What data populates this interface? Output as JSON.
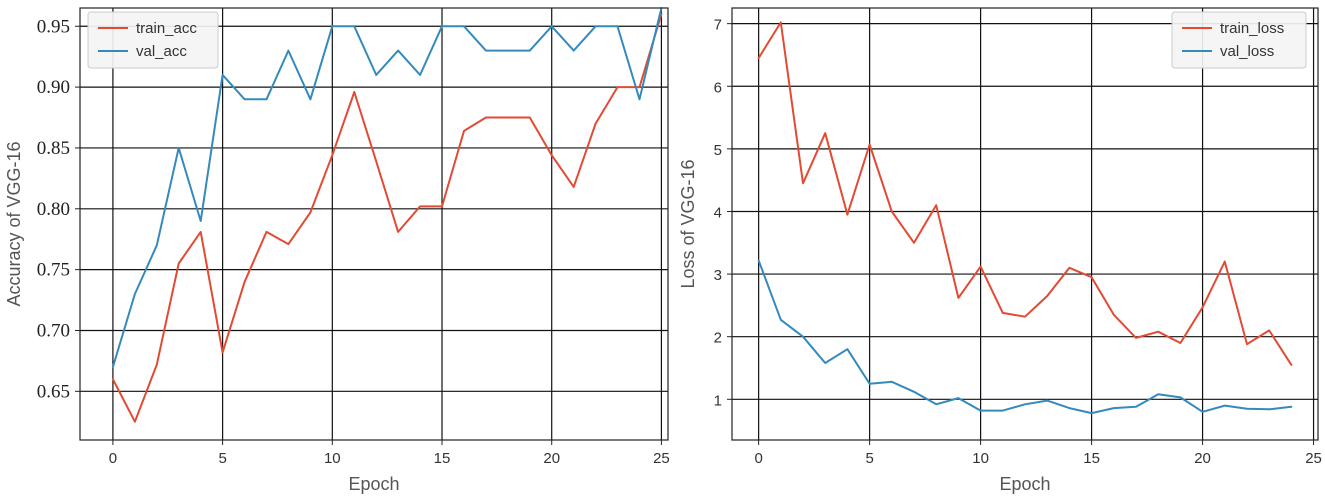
{
  "chart_data": [
    {
      "type": "line",
      "xlabel": "Epoch",
      "ylabel": "Accuracy of VGG-16",
      "xlim": [
        -1.5,
        25.3
      ],
      "ylim": [
        0.61,
        0.965
      ],
      "xticks": [
        0,
        5,
        10,
        15,
        20,
        25
      ],
      "yticks": [
        0.65,
        0.7,
        0.75,
        0.8,
        0.85,
        0.9,
        0.95
      ],
      "ytick_labels": [
        "0.65",
        "0.70",
        "0.75",
        "0.80",
        "0.85",
        "0.90",
        "0.95"
      ],
      "grid": true,
      "legend_position": "top-left",
      "series": [
        {
          "name": "train_acc",
          "color": "#e24a33",
          "x": [
            0,
            1,
            2,
            3,
            4,
            5,
            6,
            7,
            8,
            9,
            10,
            11,
            12,
            13,
            14,
            15,
            16,
            17,
            18,
            19,
            20,
            21,
            22,
            23,
            24,
            25
          ],
          "values": [
            0.66,
            0.625,
            0.672,
            0.755,
            0.781,
            0.682,
            0.74,
            0.781,
            0.771,
            0.797,
            0.844,
            0.896,
            0.839,
            0.781,
            0.802,
            0.802,
            0.864,
            0.875,
            0.875,
            0.875,
            0.844,
            0.818,
            0.87,
            0.9,
            0.9,
            0.96
          ]
        },
        {
          "name": "val_acc",
          "color": "#348abd",
          "x": [
            0,
            1,
            2,
            3,
            4,
            5,
            6,
            7,
            8,
            9,
            10,
            11,
            12,
            13,
            14,
            15,
            16,
            17,
            18,
            19,
            20,
            21,
            22,
            23,
            24,
            25
          ],
          "values": [
            0.67,
            0.73,
            0.77,
            0.85,
            0.79,
            0.91,
            0.89,
            0.89,
            0.93,
            0.89,
            0.95,
            0.95,
            0.91,
            0.93,
            0.91,
            0.95,
            0.95,
            0.93,
            0.93,
            0.93,
            0.95,
            0.93,
            0.95,
            0.95,
            0.89,
            0.965
          ]
        }
      ]
    },
    {
      "type": "line",
      "xlabel": "Epoch",
      "ylabel": "Loss of VGG-16",
      "xlim": [
        -1.2,
        25.2
      ],
      "ylim": [
        0.35,
        7.25
      ],
      "xticks": [
        0,
        5,
        10,
        15,
        20,
        25
      ],
      "yticks": [
        1,
        2,
        3,
        4,
        5,
        6,
        7
      ],
      "ytick_labels": [
        "1",
        "2",
        "3",
        "4",
        "5",
        "6",
        "7"
      ],
      "grid": true,
      "legend_position": "top-right",
      "series": [
        {
          "name": "train_loss",
          "color": "#e24a33",
          "x": [
            0,
            1,
            2,
            3,
            4,
            5,
            6,
            7,
            8,
            9,
            10,
            11,
            12,
            13,
            14,
            15,
            16,
            17,
            18,
            19,
            20,
            21,
            22,
            23,
            24
          ],
          "values": [
            6.45,
            7.02,
            4.45,
            5.25,
            3.95,
            5.07,
            4.0,
            3.5,
            4.1,
            2.62,
            3.12,
            2.38,
            2.32,
            2.65,
            3.1,
            2.95,
            2.35,
            1.98,
            2.08,
            1.9,
            2.47,
            3.2,
            1.88,
            2.1,
            1.55
          ]
        },
        {
          "name": "val_loss",
          "color": "#348abd",
          "x": [
            0,
            1,
            2,
            3,
            4,
            5,
            6,
            7,
            8,
            9,
            10,
            11,
            12,
            13,
            14,
            15,
            16,
            17,
            18,
            19,
            20,
            21,
            22,
            23,
            24
          ],
          "values": [
            3.22,
            2.27,
            2.0,
            1.58,
            1.8,
            1.25,
            1.28,
            1.12,
            0.92,
            1.02,
            0.82,
            0.82,
            0.92,
            0.98,
            0.86,
            0.78,
            0.86,
            0.88,
            1.08,
            1.03,
            0.8,
            0.9,
            0.85,
            0.84,
            0.88
          ]
        }
      ]
    }
  ]
}
